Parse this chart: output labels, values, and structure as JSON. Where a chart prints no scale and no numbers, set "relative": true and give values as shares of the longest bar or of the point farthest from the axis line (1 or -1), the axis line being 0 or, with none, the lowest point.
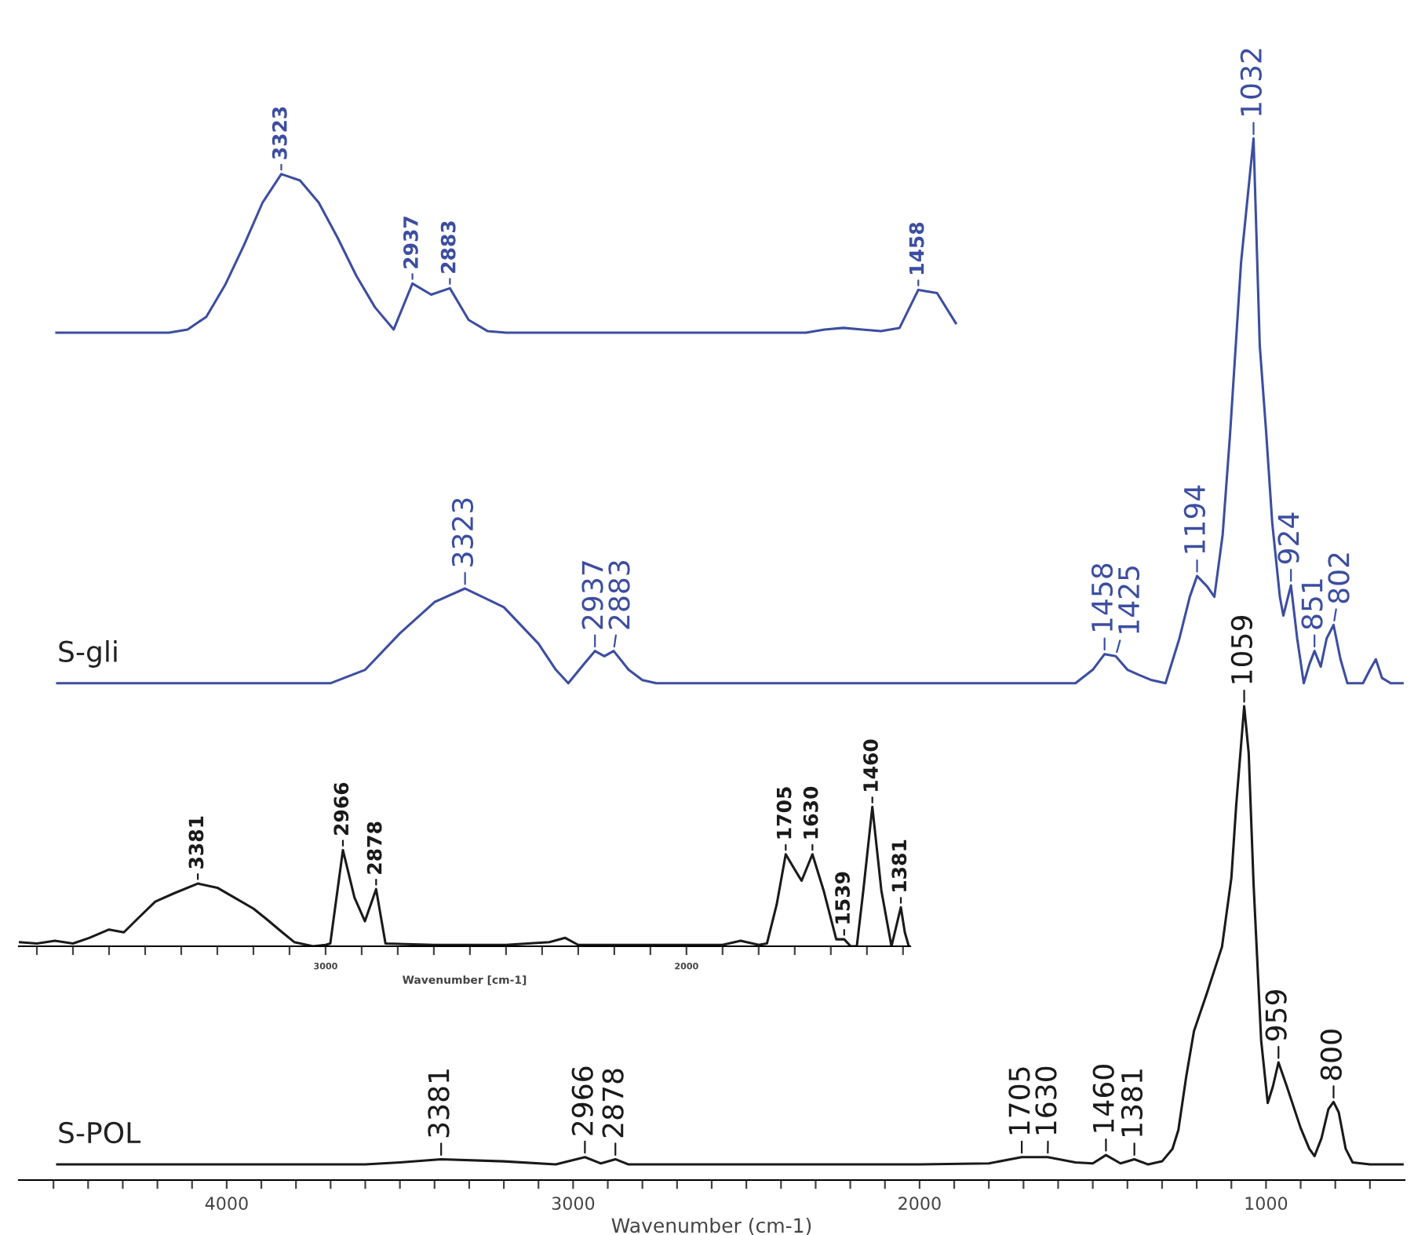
{
  "chart_data": [
    {
      "type": "line",
      "relative": true,
      "xlabel": "Wavenumber (cm-1)",
      "xlim": [
        4600,
        600
      ],
      "xticks": [
        {
          "value": 4500,
          "label": null
        },
        {
          "value": 4400,
          "label": null
        },
        {
          "value": 4300,
          "label": null
        },
        {
          "value": 4200,
          "label": null
        },
        {
          "value": 4100,
          "label": null
        },
        4000,
        {
          "value": 3900,
          "label": null
        },
        {
          "value": 3800,
          "label": null
        },
        {
          "value": 3700,
          "label": null
        },
        {
          "value": 3600,
          "label": null
        },
        {
          "value": 3500,
          "label": null
        },
        {
          "value": 3400,
          "label": null
        },
        {
          "value": 3300,
          "label": null
        },
        {
          "value": 3200,
          "label": null
        },
        {
          "value": 3100,
          "label": null
        },
        3000,
        {
          "value": 2900,
          "label": null
        },
        {
          "value": 2800,
          "label": null
        },
        {
          "value": 2700,
          "label": null
        },
        {
          "value": 2600,
          "label": null
        },
        {
          "value": 2500,
          "label": null
        },
        {
          "value": 2400,
          "label": null
        },
        {
          "value": 2300,
          "label": null
        },
        {
          "value": 2200,
          "label": null
        },
        {
          "value": 2100,
          "label": null
        },
        2000,
        {
          "value": 1900,
          "label": null
        },
        {
          "value": 1800,
          "label": null
        },
        {
          "value": 1700,
          "label": null
        },
        {
          "value": 1600,
          "label": null
        },
        {
          "value": 1500,
          "label": null
        },
        {
          "value": 1400,
          "label": null
        },
        {
          "value": 1300,
          "label": null
        },
        {
          "value": 1200,
          "label": null
        },
        {
          "value": 1100,
          "label": null
        },
        1000,
        {
          "value": 900,
          "label": null
        },
        {
          "value": 800,
          "label": null
        },
        {
          "value": 700,
          "label": null
        }
      ],
      "series": [
        {
          "name": "S-gli",
          "color": "#3c4ea0",
          "x": [
            4489,
            3701,
            3600,
            3500,
            3400,
            3312,
            3200,
            3100,
            3050,
            3014,
            2970,
            2937,
            2910,
            2883,
            2840,
            2800,
            2760,
            2000,
            1550,
            1500,
            1466,
            1434,
            1400,
            1367,
            1330,
            1290,
            1250,
            1220,
            1199,
            1170,
            1149,
            1125,
            1104,
            1072,
            1036,
            1018,
            1000,
            982,
            960,
            950,
            928,
            910,
            891,
            875,
            860,
            842,
            825,
            805,
            785,
            765,
            720,
            700,
            683,
            665,
            640,
            606
          ],
          "values": [
            0.477,
            0.477,
            0.49,
            0.525,
            0.555,
            0.568,
            0.55,
            0.515,
            0.49,
            0.477,
            0.495,
            0.508,
            0.503,
            0.508,
            0.49,
            0.48,
            0.477,
            0.477,
            0.477,
            0.49,
            0.505,
            0.503,
            0.49,
            0.485,
            0.48,
            0.477,
            0.52,
            0.56,
            0.58,
            0.57,
            0.56,
            0.62,
            0.715,
            0.881,
            1.0,
            0.801,
            0.72,
            0.631,
            0.56,
            0.542,
            0.571,
            0.52,
            0.477,
            0.495,
            0.508,
            0.493,
            0.52,
            0.533,
            0.5,
            0.477,
            0.477,
            0.49,
            0.5,
            0.482,
            0.477,
            0.477
          ]
        },
        {
          "name": "S-POL",
          "color": "#1a1a1a",
          "x": [
            4489,
            3600,
            3500,
            3381,
            3200,
            3050,
            2966,
            2920,
            2878,
            2840,
            2500,
            2000,
            1800,
            1705,
            1630,
            1550,
            1500,
            1462,
            1420,
            1380,
            1340,
            1300,
            1270,
            1253,
            1230,
            1208,
            1170,
            1127,
            1100,
            1086,
            1063,
            1050,
            1036,
            1014,
            995,
            980,
            964,
            940,
            900,
            875,
            860,
            840,
            820,
            805,
            790,
            770,
            750,
            700,
            606
          ],
          "values": [
            0.015,
            0.015,
            0.017,
            0.02,
            0.018,
            0.015,
            0.022,
            0.016,
            0.02,
            0.015,
            0.015,
            0.015,
            0.016,
            0.022,
            0.022,
            0.017,
            0.016,
            0.024,
            0.016,
            0.02,
            0.015,
            0.018,
            0.03,
            0.048,
            0.1,
            0.143,
            0.18,
            0.224,
            0.29,
            0.36,
            0.455,
            0.41,
            0.285,
            0.134,
            0.074,
            0.09,
            0.113,
            0.09,
            0.05,
            0.03,
            0.023,
            0.04,
            0.068,
            0.075,
            0.065,
            0.03,
            0.017,
            0.015,
            0.015
          ]
        }
      ],
      "annotations": [
        {
          "text": "3323",
          "x": 3312,
          "y": 0.568
        },
        {
          "text": "2937",
          "x": 2937,
          "y": 0.508
        },
        {
          "text": "2883",
          "x": 2883,
          "y": 0.508
        },
        {
          "text": "1458",
          "x": 1466,
          "y": 0.505
        },
        {
          "text": "1425",
          "x": 1434,
          "y": 0.503
        },
        {
          "text": "1194",
          "x": 1199,
          "y": 0.58
        },
        {
          "text": "1032",
          "x": 1036,
          "y": 1.0
        },
        {
          "text": "924",
          "x": 928,
          "y": 0.571
        },
        {
          "text": "851",
          "x": 860,
          "y": 0.508
        },
        {
          "text": "802",
          "x": 805,
          "y": 0.533
        },
        {
          "text": "3381",
          "x": 3381,
          "y": 0.02
        },
        {
          "text": "2966",
          "x": 2966,
          "y": 0.022
        },
        {
          "text": "2878",
          "x": 2878,
          "y": 0.02
        },
        {
          "text": "1705",
          "x": 1705,
          "y": 0.022
        },
        {
          "text": "1630",
          "x": 1630,
          "y": 0.022
        },
        {
          "text": "1460",
          "x": 1462,
          "y": 0.024
        },
        {
          "text": "1381",
          "x": 1380,
          "y": 0.02
        },
        {
          "text": "1059",
          "x": 1063,
          "y": 0.455
        },
        {
          "text": "959",
          "x": 964,
          "y": 0.113
        },
        {
          "text": "800",
          "x": 805,
          "y": 0.075
        }
      ]
    },
    {
      "type": "line",
      "relative": true,
      "categories": [
        null,
        null,
        null,
        null,
        null,
        null,
        null,
        null,
        null,
        null,
        null,
        null,
        null,
        null,
        null,
        null,
        null,
        null,
        null,
        null,
        null,
        null,
        null,
        null,
        null,
        null,
        null,
        null,
        null,
        null,
        null,
        null,
        null,
        null,
        null,
        null,
        null,
        null,
        null,
        null,
        null,
        null,
        null,
        null,
        null,
        null,
        null,
        null,
        null
      ],
      "series": [
        {
          "color": "#3c4ea0",
          "values": [
            0,
            0,
            0,
            0,
            0,
            0,
            0,
            0.02,
            0.1,
            0.3,
            0.55,
            0.82,
            1.0,
            0.96,
            0.82,
            0.6,
            0.36,
            0.16,
            0.02,
            0.31,
            0.24,
            0.28,
            0.08,
            0.01,
            0,
            0,
            0,
            0,
            0,
            0,
            0,
            0,
            0,
            0,
            0,
            0,
            0,
            0,
            0,
            0,
            0,
            0.02,
            0.03,
            0.02,
            0.01,
            0.03,
            0.27,
            0.25,
            0.06
          ]
        }
      ],
      "annotations": [
        {
          "text": "3323",
          "y": 1.0
        },
        {
          "text": "2937",
          "y": 0.31
        },
        {
          "text": "2883",
          "y": 0.28
        },
        {
          "text": "1458",
          "y": 0.27
        }
      ]
    },
    {
      "type": "line",
      "relative": true,
      "xlabel": "Wavenumber [cm-1]",
      "xlim": [
        3850,
        1380
      ],
      "xticks": [
        {
          "value": 3800,
          "label": null
        },
        {
          "value": 3700,
          "label": null
        },
        {
          "value": 3600,
          "label": null
        },
        {
          "value": 3500,
          "label": null
        },
        {
          "value": 3400,
          "label": null
        },
        {
          "value": 3300,
          "label": null
        },
        {
          "value": 3200,
          "label": null
        },
        {
          "value": 3100,
          "label": null
        },
        3000,
        {
          "value": 2900,
          "label": null
        },
        {
          "value": 2800,
          "label": null
        },
        {
          "value": 2700,
          "label": null
        },
        {
          "value": 2600,
          "label": null
        },
        {
          "value": 2500,
          "label": null
        },
        {
          "value": 2400,
          "label": null
        },
        {
          "value": 2300,
          "label": null
        },
        {
          "value": 2200,
          "label": null
        },
        {
          "value": 2100,
          "label": null
        },
        2000,
        {
          "value": 1900,
          "label": null
        },
        {
          "value": 1800,
          "label": null
        },
        {
          "value": 1700,
          "label": null
        },
        {
          "value": 1600,
          "label": null
        },
        {
          "value": 1500,
          "label": null
        },
        {
          "value": 1400,
          "label": null
        }
      ],
      "series": [
        {
          "color": "#1a1a1a",
          "x": [
            3850,
            3800,
            3750,
            3700,
            3655,
            3600,
            3559,
            3520,
            3472,
            3420,
            3354,
            3300,
            3253,
            3200,
            3166,
            3120,
            3087,
            3035,
            3000,
            2987,
            2952,
            2920,
            2891,
            2860,
            2834,
            2700,
            2500,
            2380,
            2336,
            2300,
            2100,
            1900,
            1850,
            1800,
            1777,
            1750,
            1725,
            1700,
            1681,
            1651,
            1620,
            1585,
            1563,
            1545,
            1528,
            1510,
            1485,
            1460,
            1432,
            1406,
            1395,
            1384
          ],
          "values": [
            0.03,
            0.02,
            0.04,
            0.02,
            0.06,
            0.12,
            0.1,
            0.2,
            0.32,
            0.38,
            0.45,
            0.42,
            0.35,
            0.27,
            0.2,
            0.1,
            0.03,
            0.0,
            0.01,
            0.02,
            0.69,
            0.35,
            0.18,
            0.41,
            0.02,
            0.01,
            0.01,
            0.03,
            0.06,
            0.01,
            0.01,
            0.01,
            0.04,
            0.01,
            0.02,
            0.3,
            0.66,
            0.55,
            0.47,
            0.66,
            0.4,
            0.05,
            0.05,
            0.0,
            0.0,
            0.4,
            1.0,
            0.4,
            0.0,
            0.28,
            0.1,
            0.0
          ]
        }
      ],
      "annotations": [
        {
          "text": "3381",
          "x": 3354,
          "y": 0.45
        },
        {
          "text": "2966",
          "x": 2952,
          "y": 0.69
        },
        {
          "text": "2878",
          "x": 2860,
          "y": 0.41
        },
        {
          "text": "1705",
          "x": 1725,
          "y": 0.66
        },
        {
          "text": "1630",
          "x": 1651,
          "y": 0.66
        },
        {
          "text": "1539",
          "x": 1563,
          "y": 0.05
        },
        {
          "text": "1460",
          "x": 1485,
          "y": 1.0
        },
        {
          "text": "1381",
          "x": 1406,
          "y": 0.28
        }
      ]
    }
  ]
}
